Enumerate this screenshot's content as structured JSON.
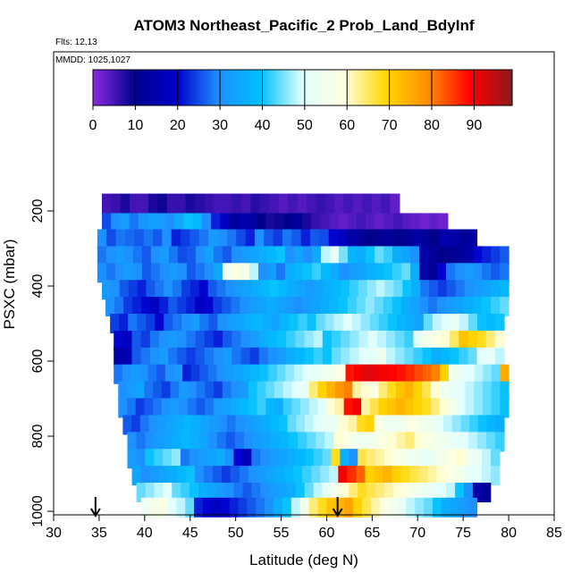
{
  "chart_data": {
    "type": "heatmap",
    "title": "ATOM3 Northeast_Pacific_2 Prob_Land_BdyInf",
    "subtitle_flights": "Flts: 12,13",
    "subtitle_dates": "MMDD: 1025,1027",
    "xlabel": "Latitude (deg N)",
    "ylabel": "PSXC (mbar)",
    "xlim": [
      30,
      85
    ],
    "ylim": [
      1000,
      50
    ],
    "y_reversed": true,
    "x_ticks": [
      "30",
      "35",
      "40",
      "45",
      "50",
      "55",
      "60",
      "65",
      "70",
      "75",
      "80",
      "85"
    ],
    "y_ticks": [
      "200",
      "400",
      "600",
      "800",
      "1000"
    ],
    "colorbar": {
      "ticks": [
        "0",
        "10",
        "20",
        "30",
        "40",
        "50",
        "60",
        "70",
        "80",
        "90"
      ],
      "range": [
        0,
        99
      ],
      "colors": [
        "#8a2be2",
        "#00008b",
        "#0000cd",
        "#1e90ff",
        "#00bfff",
        "#e0ffff",
        "#ffffe0",
        "#ffd700",
        "#ff8c00",
        "#ff0000",
        "#8b1a1a"
      ]
    },
    "markers": {
      "arrow_latitudes": [
        34.6,
        61.2
      ]
    },
    "grid": false,
    "rows": [
      {
        "p": 180,
        "x0": 35.3,
        "x1": 68.0,
        "values": [
          5,
          6,
          8,
          5,
          5,
          8,
          9,
          6,
          6,
          8,
          7,
          6,
          5,
          5,
          6,
          5,
          7,
          6,
          5,
          4,
          5,
          4,
          5,
          6,
          5,
          4,
          5,
          4,
          5,
          4,
          5,
          3
        ]
      },
      {
        "p": 232,
        "x0": 35.3,
        "x1": 73.3,
        "values": [
          25,
          30,
          32,
          28,
          31,
          33,
          32,
          30,
          35,
          40,
          38,
          30,
          22,
          18,
          12,
          15,
          14,
          10,
          8,
          9,
          10,
          12,
          8,
          6,
          5,
          4,
          3,
          4,
          5,
          4,
          3,
          4,
          5,
          4,
          3,
          2,
          3,
          2
        ]
      },
      {
        "p": 275,
        "x0": 34.8,
        "x1": 76.5,
        "values": [
          30,
          25,
          28,
          27,
          26,
          28,
          26,
          30,
          22,
          24,
          26,
          28,
          32,
          30,
          28,
          25,
          22,
          30,
          26,
          24,
          28,
          26,
          22,
          26,
          25,
          20,
          18,
          14,
          12,
          10,
          11,
          12,
          10,
          11,
          14,
          12,
          10,
          15,
          14,
          12,
          13
        ]
      },
      {
        "p": 320,
        "x0": 34.8,
        "x1": 80.0,
        "values": [
          28,
          30,
          32,
          30,
          28,
          26,
          30,
          32,
          28,
          25,
          26,
          30,
          33,
          28,
          26,
          30,
          32,
          34,
          36,
          38,
          40,
          30,
          34,
          30,
          35,
          48,
          50,
          45,
          38,
          36,
          40,
          44,
          42,
          36,
          34,
          30,
          14,
          12,
          10,
          11,
          12,
          14,
          20,
          22,
          24,
          26
        ]
      },
      {
        "p": 365,
        "x0": 34.8,
        "x1": 80.0,
        "values": [
          30,
          28,
          30,
          32,
          30,
          26,
          28,
          30,
          32,
          30,
          26,
          28,
          30,
          35,
          55,
          58,
          56,
          48,
          30,
          32,
          28,
          36,
          38,
          40,
          42,
          38,
          36,
          30,
          32,
          34,
          36,
          38,
          40,
          42,
          44,
          36,
          14,
          12,
          20,
          28,
          30,
          32,
          30,
          28,
          26,
          28
        ]
      },
      {
        "p": 410,
        "x0": 35.3,
        "x1": 80.0,
        "values": [
          32,
          30,
          26,
          24,
          22,
          26,
          28,
          30,
          28,
          24,
          22,
          20,
          26,
          28,
          30,
          32,
          34,
          36,
          38,
          40,
          38,
          36,
          34,
          32,
          34,
          36,
          38,
          40,
          42,
          44,
          46,
          48,
          46,
          44,
          40,
          36,
          28,
          26,
          24,
          26,
          28,
          30,
          32,
          34,
          36,
          38
        ]
      },
      {
        "p": 455,
        "x0": 35.7,
        "x1": 80.0,
        "values": [
          30,
          28,
          24,
          22,
          20,
          18,
          22,
          26,
          24,
          22,
          18,
          20,
          24,
          26,
          28,
          30,
          32,
          34,
          36,
          34,
          32,
          30,
          32,
          34,
          36,
          38,
          40,
          42,
          44,
          46,
          44,
          42,
          40,
          36,
          34,
          30,
          28,
          30,
          32,
          34,
          36,
          38,
          40,
          42,
          44
        ]
      },
      {
        "p": 500,
        "x0": 36.2,
        "x1": 79.5,
        "values": [
          24,
          22,
          28,
          26,
          24,
          20,
          26,
          28,
          30,
          32,
          28,
          26,
          30,
          32,
          34,
          36,
          38,
          36,
          34,
          38,
          40,
          42,
          40,
          44,
          46,
          48,
          50,
          48,
          46,
          44,
          42,
          40,
          38,
          36,
          34,
          44,
          48,
          50,
          52,
          48,
          44,
          40,
          38,
          40
        ]
      },
      {
        "p": 545,
        "x0": 36.6,
        "x1": 79.5,
        "values": [
          20,
          18,
          26,
          24,
          28,
          30,
          32,
          30,
          28,
          26,
          24,
          22,
          26,
          28,
          30,
          32,
          36,
          38,
          40,
          42,
          44,
          46,
          48,
          40,
          42,
          44,
          46,
          48,
          50,
          48,
          46,
          44,
          42,
          52,
          56,
          58,
          60,
          65,
          72,
          70,
          68,
          64,
          60
        ]
      },
      {
        "p": 590,
        "x0": 36.6,
        "x1": 79.5,
        "values": [
          14,
          16,
          26,
          28,
          30,
          32,
          28,
          26,
          24,
          26,
          28,
          30,
          32,
          28,
          26,
          24,
          28,
          30,
          32,
          36,
          38,
          40,
          42,
          40,
          44,
          46,
          48,
          50,
          52,
          54,
          48,
          46,
          44,
          42,
          40,
          36,
          38,
          40,
          42,
          44,
          50,
          52,
          48
        ]
      },
      {
        "p": 635,
        "x0": 36.6,
        "x1": 80.0,
        "values": [
          28,
          30,
          32,
          30,
          28,
          26,
          30,
          32,
          22,
          24,
          26,
          28,
          30,
          32,
          34,
          36,
          38,
          40,
          42,
          44,
          46,
          48,
          50,
          52,
          54,
          56,
          58,
          88,
          90,
          92,
          91,
          90,
          89,
          88,
          86,
          84,
          82,
          80,
          70,
          55,
          52,
          50,
          48,
          46,
          44,
          75
        ]
      },
      {
        "p": 680,
        "x0": 37.1,
        "x1": 80.0,
        "values": [
          30,
          32,
          34,
          28,
          26,
          24,
          28,
          32,
          30,
          28,
          26,
          24,
          28,
          30,
          32,
          40,
          42,
          44,
          46,
          48,
          50,
          52,
          64,
          70,
          74,
          78,
          80,
          62,
          60,
          58,
          64,
          68,
          72,
          74,
          70,
          66,
          60,
          55,
          52,
          50,
          48,
          46,
          44,
          42,
          40
        ]
      },
      {
        "p": 725,
        "x0": 37.1,
        "x1": 80.0,
        "values": [
          30,
          28,
          24,
          26,
          28,
          30,
          32,
          30,
          28,
          26,
          28,
          32,
          34,
          36,
          38,
          40,
          42,
          38,
          36,
          42,
          44,
          46,
          48,
          50,
          60,
          62,
          88,
          90,
          62,
          66,
          70,
          72,
          74,
          72,
          70,
          68,
          64,
          60,
          56,
          50,
          48,
          46,
          44,
          42,
          40
        ]
      },
      {
        "p": 770,
        "x0": 37.6,
        "x1": 79.5,
        "values": [
          26,
          24,
          28,
          30,
          32,
          34,
          36,
          38,
          36,
          34,
          32,
          30,
          28,
          30,
          32,
          34,
          36,
          38,
          40,
          44,
          46,
          48,
          50,
          52,
          54,
          60,
          62,
          68,
          70,
          58,
          55,
          54,
          56,
          58,
          56,
          54,
          52,
          48,
          46,
          44,
          42,
          40,
          38,
          36
        ]
      },
      {
        "p": 815,
        "x0": 38.1,
        "x1": 79.5,
        "values": [
          30,
          28,
          30,
          32,
          34,
          36,
          38,
          36,
          34,
          30,
          28,
          26,
          28,
          30,
          32,
          34,
          36,
          38,
          40,
          42,
          44,
          46,
          48,
          60,
          58,
          55,
          54,
          56,
          58,
          60,
          62,
          64,
          60,
          58,
          56,
          54,
          52,
          50,
          48,
          46,
          44,
          42
        ]
      },
      {
        "p": 860,
        "x0": 38.1,
        "x1": 79.0,
        "values": [
          32,
          30,
          40,
          42,
          44,
          46,
          28,
          30,
          32,
          34,
          36,
          30,
          20,
          16,
          28,
          30,
          32,
          34,
          36,
          38,
          40,
          42,
          44,
          68,
          36,
          30,
          66,
          64,
          62,
          60,
          58,
          56,
          54,
          52,
          54,
          56,
          58,
          60,
          56,
          52,
          48,
          44
        ]
      },
      {
        "p": 905,
        "x0": 38.6,
        "x1": 79.0,
        "values": [
          34,
          30,
          32,
          34,
          36,
          38,
          40,
          30,
          28,
          26,
          24,
          26,
          28,
          30,
          32,
          34,
          36,
          38,
          40,
          42,
          44,
          46,
          48,
          90,
          86,
          82,
          70,
          72,
          74,
          70,
          68,
          66,
          64,
          62,
          60,
          58,
          56,
          52,
          50,
          48,
          46
        ]
      },
      {
        "p": 950,
        "x0": 39.1,
        "x1": 78.0,
        "values": [
          44,
          46,
          48,
          50,
          44,
          42,
          40,
          36,
          34,
          32,
          30,
          28,
          26,
          28,
          30,
          32,
          34,
          36,
          40,
          44,
          48,
          52,
          56,
          60,
          64,
          68,
          66,
          64,
          62,
          60,
          58,
          56,
          54,
          52,
          50,
          48,
          40,
          30,
          14,
          12
        ]
      },
      {
        "p": 990,
        "x0": 39.6,
        "x1": 76.5,
        "values": [
          54,
          56,
          58,
          50,
          48,
          44,
          22,
          20,
          18,
          20,
          22,
          24,
          26,
          28,
          30,
          36,
          40,
          48,
          56,
          64,
          68,
          72,
          74,
          76,
          70,
          66,
          62,
          58,
          56,
          52,
          48,
          46,
          44,
          40,
          36,
          34,
          32,
          30
        ]
      }
    ]
  }
}
